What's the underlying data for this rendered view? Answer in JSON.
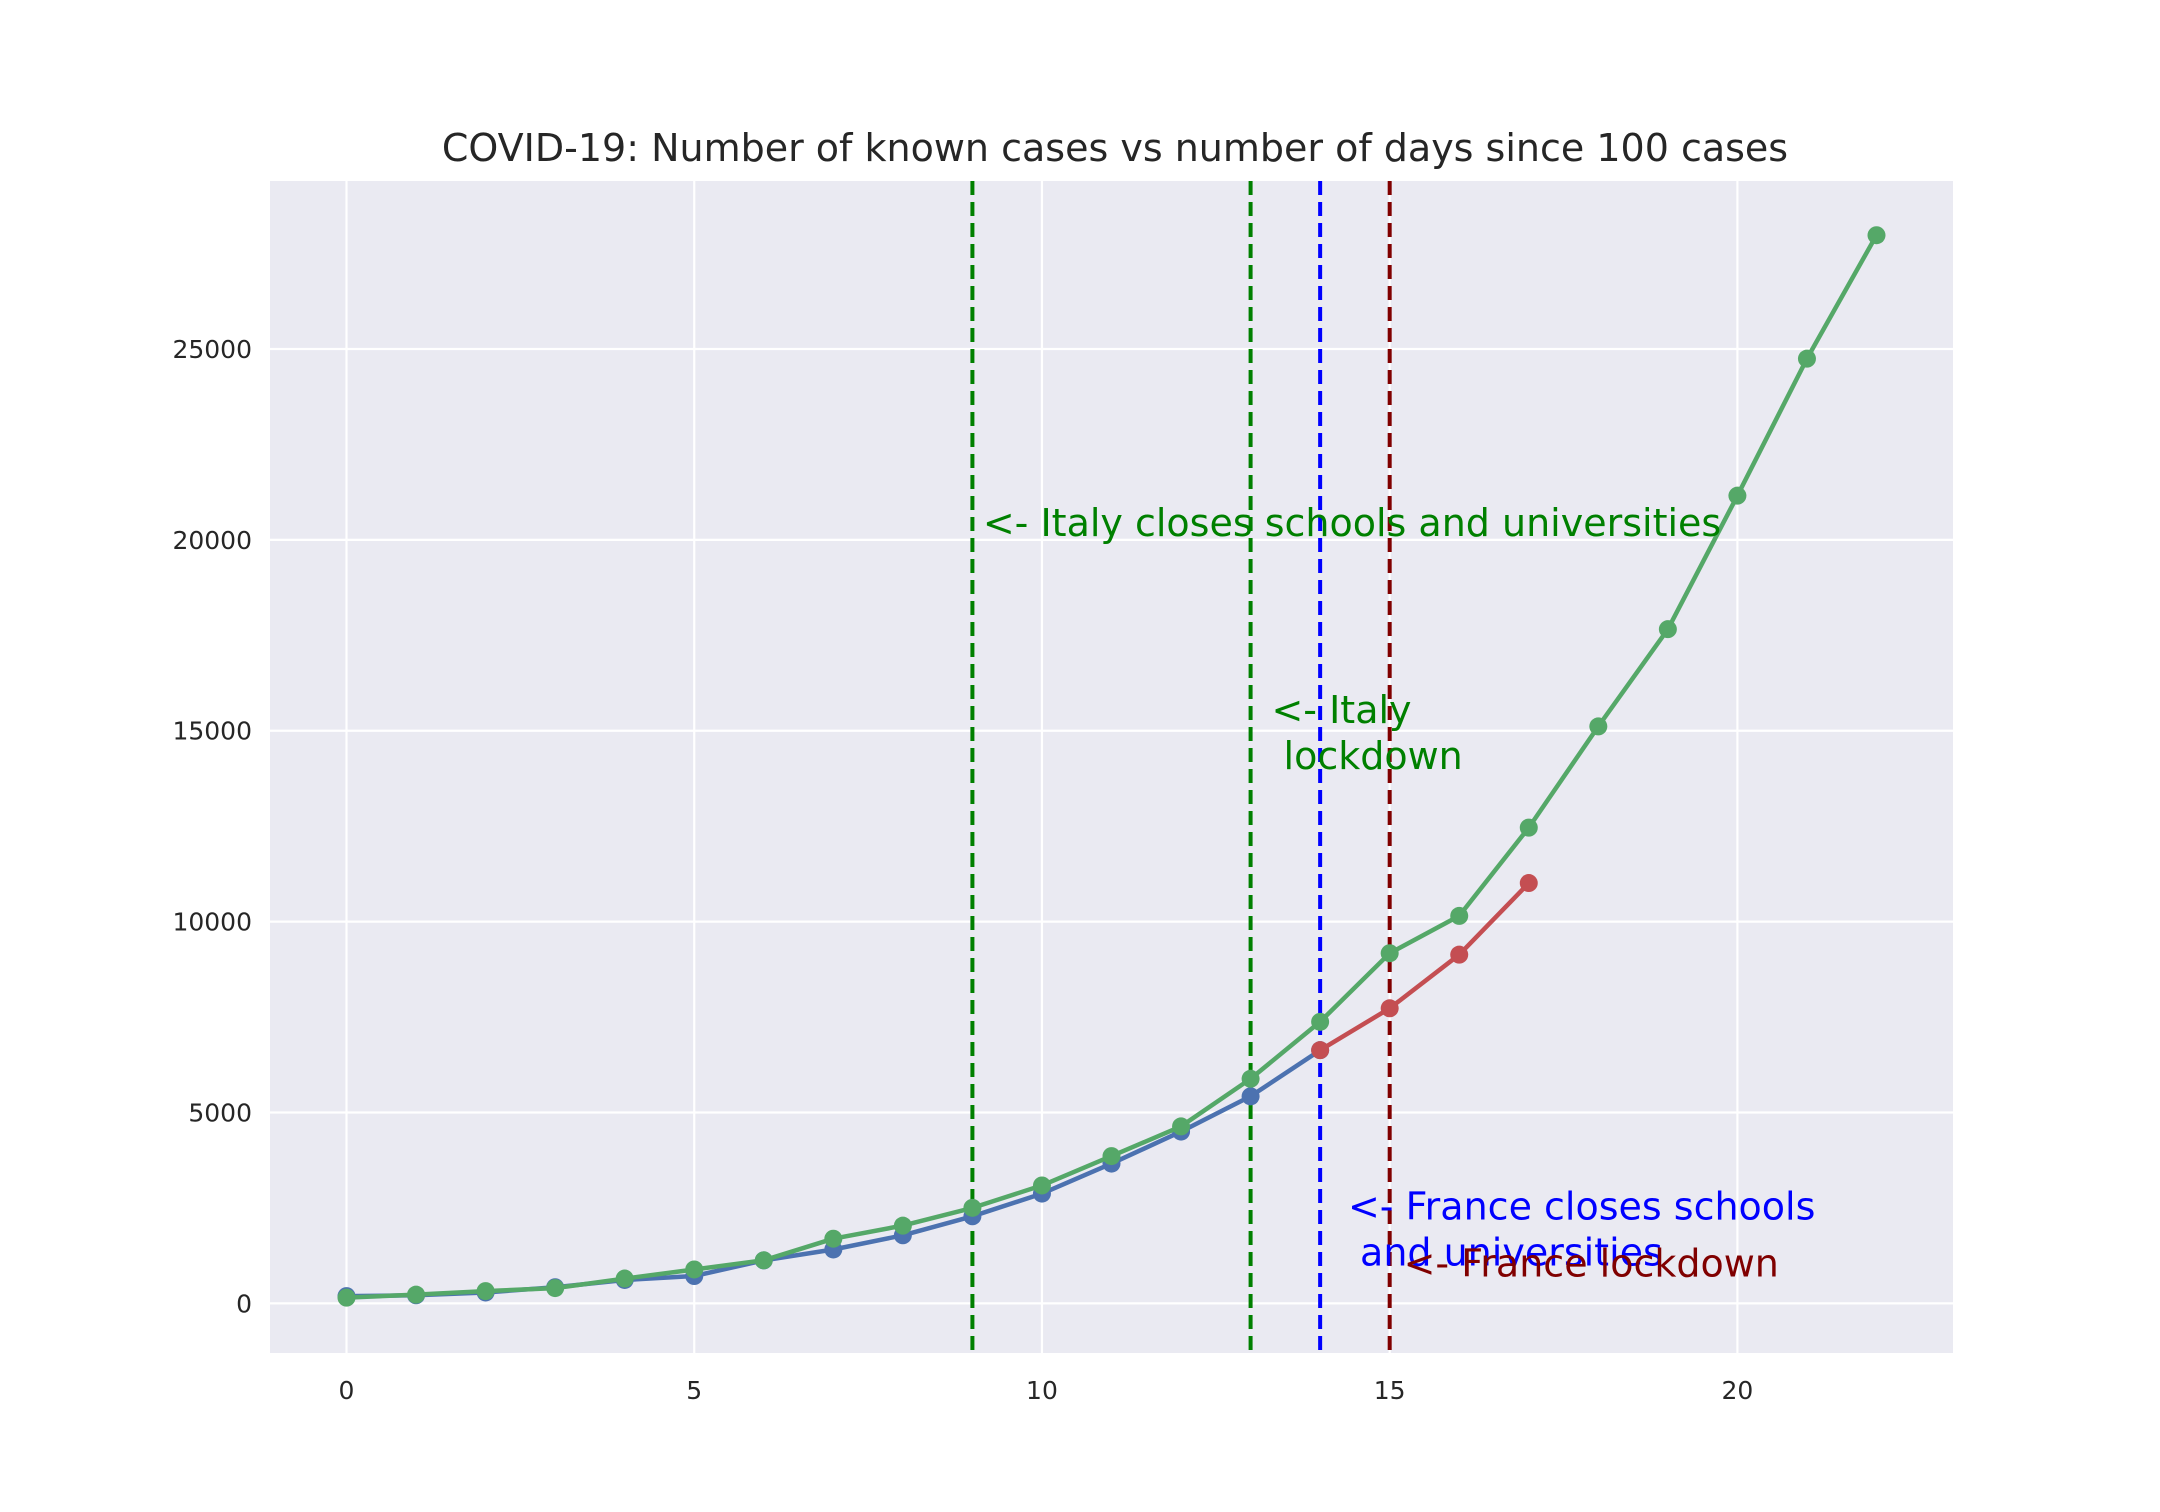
{
  "chart_data": {
    "type": "line",
    "title": "COVID-19: Number of known cases vs number of days since 100 cases",
    "xlabel": "",
    "ylabel": "",
    "xlim": [
      -1.1,
      23.1
    ],
    "ylim": [
      -1300,
      29400
    ],
    "xticks": [
      0,
      5,
      10,
      15,
      20
    ],
    "yticks": [
      0,
      5000,
      10000,
      15000,
      20000,
      25000
    ],
    "grid": true,
    "background": "#eaeaf2",
    "series": [
      {
        "color": "#4c72b0",
        "x": [
          0,
          1,
          2,
          3,
          4,
          5,
          6,
          7,
          8,
          9,
          10,
          11,
          12,
          13,
          14
        ],
        "y": [
          191,
          212,
          285,
          423,
          613,
          716,
          1126,
          1412,
          1784,
          2281,
          2876,
          3661,
          4499,
          5423,
          6633
        ]
      },
      {
        "color": "#c44e52",
        "x": [
          14,
          15,
          16,
          17
        ],
        "y": [
          6633,
          7730,
          9134,
          11010
        ]
      },
      {
        "color": "#55a868",
        "x": [
          0,
          1,
          2,
          3,
          4,
          5,
          6,
          7,
          8,
          9,
          10,
          11,
          12,
          13,
          14,
          15,
          16,
          17,
          18,
          19,
          20,
          21,
          22
        ],
        "y": [
          150,
          229,
          322,
          400,
          650,
          888,
          1128,
          1694,
          2036,
          2502,
          3089,
          3858,
          4636,
          5883,
          7375,
          9172,
          10149,
          12462,
          15113,
          17660,
          21157,
          24747,
          27980
        ]
      }
    ],
    "vlines": [
      {
        "x": 9,
        "color": "#008000"
      },
      {
        "x": 13,
        "color": "#008000"
      },
      {
        "x": 14,
        "color": "#0000ff"
      },
      {
        "x": 15,
        "color": "#800000"
      }
    ],
    "annotations": [
      {
        "lines": [
          "<-  Italy closes schools and universities"
        ],
        "color": "#008000",
        "x": 9.15,
        "y": 20100
      },
      {
        "lines": [
          "<-  Italy",
          "     lockdown"
        ],
        "color": "#008000",
        "x": 13.3,
        "y": 15200
      },
      {
        "lines": [
          "<-  France closes schools",
          "       and universities"
        ],
        "color": "#0000ff",
        "x": 14.4,
        "y": 2200
      },
      {
        "lines": [
          "<-  France lockdown"
        ],
        "color": "#800000",
        "x": 15.2,
        "y": 700
      }
    ]
  }
}
